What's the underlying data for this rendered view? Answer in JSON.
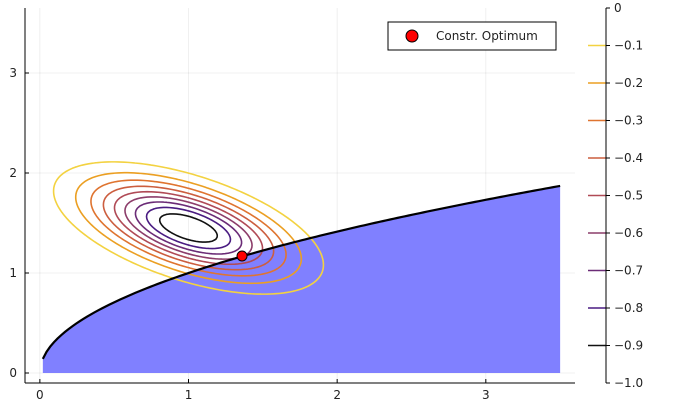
{
  "chart_data": {
    "type": "contour",
    "title": "",
    "xlabel": "",
    "ylabel": "",
    "xlim": [
      -0.1,
      3.6
    ],
    "ylim": [
      -0.1,
      3.65
    ],
    "x_ticks": [
      0,
      1,
      2,
      3
    ],
    "x_tick_labels": [
      "0",
      "1",
      "2",
      "3"
    ],
    "y_ticks": [
      0,
      1,
      2,
      3
    ],
    "y_tick_labels": [
      "0",
      "1",
      "2",
      "3"
    ],
    "grid": true,
    "objective": {
      "description": "approximate reconstruction of plotted contour field",
      "center": [
        1.0,
        1.45
      ],
      "rx": 0.47,
      "ry": 0.23,
      "rotation_deg": -30,
      "amplitude": -1.0
    },
    "contour_levels": [
      -0.1,
      -0.2,
      -0.3,
      -0.4,
      -0.5,
      -0.6,
      -0.7,
      -0.8,
      -0.9
    ],
    "level_colors": [
      "#f3d241",
      "#eb9f22",
      "#df7430",
      "#cc5e3f",
      "#b04a56",
      "#8c3d6a",
      "#6b2c77",
      "#4a1c82",
      "#111111"
    ],
    "colorbar": {
      "min": -1.0,
      "max": 0.0,
      "ticks": [
        0,
        -0.1,
        -0.2,
        -0.3,
        -0.4,
        -0.5,
        -0.6,
        -0.7,
        -0.8,
        -0.9,
        -1.0
      ],
      "tick_labels": [
        "0",
        "−0.1",
        "−0.2",
        "−0.3",
        "−0.4",
        "−0.5",
        "−0.6",
        "−0.7",
        "−0.8",
        "−0.9",
        "−1.0"
      ]
    },
    "feasible_region": {
      "boundary": "y = x^(1/2)",
      "x_range": [
        0.02,
        3.5
      ],
      "fill_color": "#8080ff",
      "boundary_color": "#000000"
    },
    "constrained_optimum": {
      "x": 1.36,
      "y": 1.17,
      "color": "#ff0000"
    },
    "legend": {
      "position": "top-right",
      "entries": [
        {
          "label": "Constr. Optimum",
          "marker": "circle",
          "color": "#ff0000"
        }
      ]
    }
  }
}
